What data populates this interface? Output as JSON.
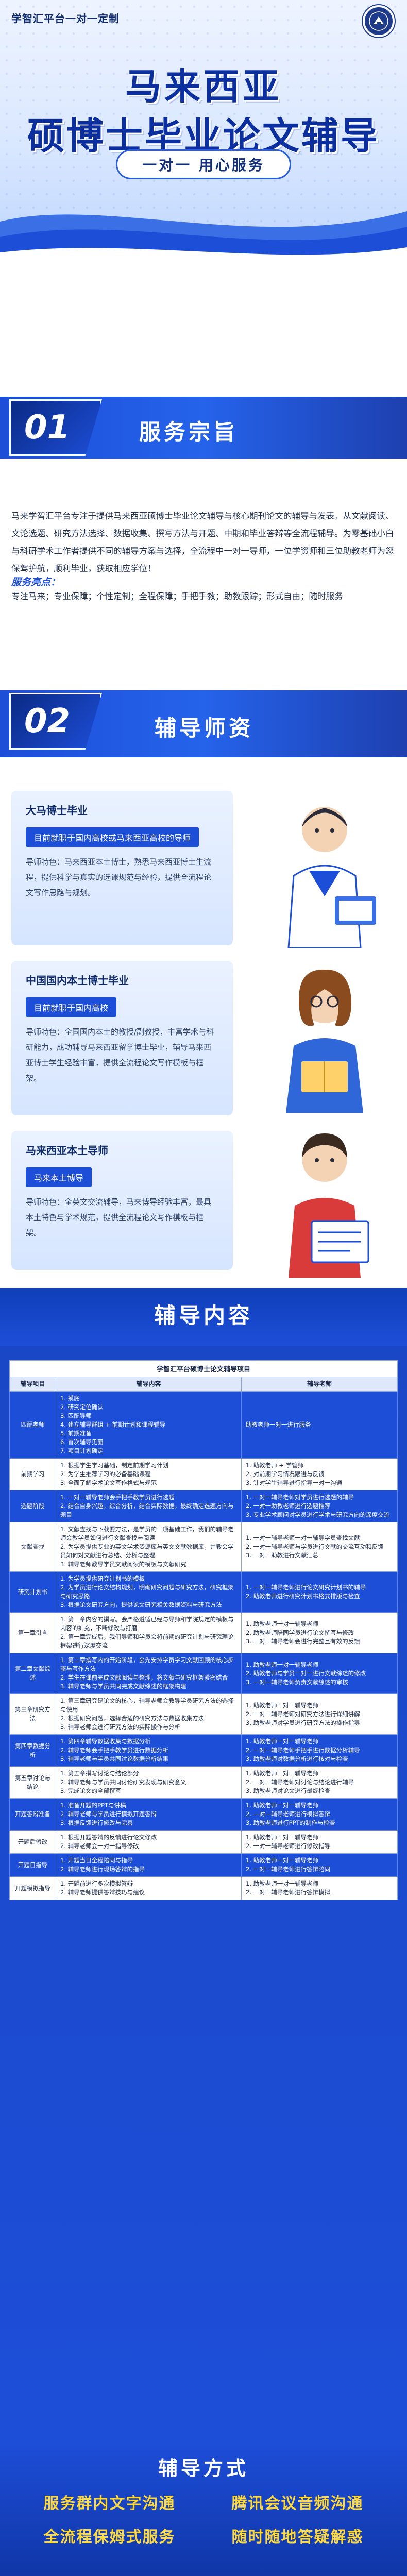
{
  "header": {
    "brand": "学智汇平台一对一定制",
    "title_line1": "马来西亚",
    "title_line2": "硕博士毕业论文辅导",
    "pill": "一对一  用心服务"
  },
  "section1": {
    "number": "01",
    "title": "服务宗旨",
    "body": "马来学智汇平台专注于提供马来西亚硕博士毕业论文辅导与核心期刊论文的辅导与发表。从文献阅读、文论选题、研究方法选择、数据收集、撰写方法与开题、中期和毕业答辩等全流程辅导。为零基础小白与科研学术工作者提供不同的辅导方案与选择，全流程中一对一导师，一位学资师和三位助教老师为您保驾护航，顺利毕业，获取相应学位！",
    "adv_label": "服务亮点：",
    "adv_list": "专注马来；专业保障；个性定制；全程保障；手把手教；助教跟踪；形式自由；随时服务"
  },
  "section2": {
    "number": "02",
    "title": "辅导师资",
    "mentors": [
      {
        "title": "大马博士毕业",
        "sub": "目前就职于国内高校或马来西亚高校的导师",
        "desc": "导师特色：马来西亚本土博士，熟悉马来西亚博士生流程，提供科学与真实的选课规范与经验，提供全流程论文写作思路与规划。"
      },
      {
        "title": "中国国内本土博士毕业",
        "sub": "目前就职于国内高校",
        "desc": "导师特色：全国国内本土的教授/副教授，丰富学术与科研能力，成功辅导马来西亚留学博士毕业，辅导马来西亚博士学生经验丰富，提供全流程论文写作模板与框架。"
      },
      {
        "title": "马来西亚本土导师",
        "sub": "马来本土博导",
        "desc": "导师特色：全英文交流辅导，马来博导经验丰富，最具本土特色与学术规范，提供全流程论文写作模板与框架。"
      }
    ]
  },
  "section3": {
    "title": "辅导内容",
    "table_caption": "学智汇平台硕博士论文辅导项目",
    "headers": [
      "辅导项目",
      "辅导内容",
      "辅导老师"
    ],
    "rows": [
      {
        "stage": "匹配老师",
        "content": [
          "1. 摸底",
          "2. 研究定位确认",
          "3. 匹配导师",
          "4. 建立辅导群组 + 前期计划和课程辅导",
          "5. 前期准备",
          "6. 首次辅导见面",
          "7. 项目计划确定"
        ],
        "teacher": "助教老师一对一进行服务",
        "hl": true
      },
      {
        "stage": "前期学习",
        "content": [
          "1. 根据学生学习基础，制定前期学习计划",
          "2. 为学生推荐学习的必备基础课程",
          "3. 全面了解学术论文写作格式与规范"
        ],
        "teacher": "1. 助教老师 + 学管师\n2. 对前期学习情况跟进与反馈\n3. 针对学生辅导进行指导一对一沟通",
        "hl": false
      },
      {
        "stage": "选题阶段",
        "content": [
          "1. 一对一辅导老师会手把手教学员进行选题",
          "2. 结合自身兴趣，综合分析，结合实际数据，最终确定选题方向与题目"
        ],
        "teacher": "1. 一对一辅导老师对学员进行选题的辅导\n2. 一对一助教老师进行选题推荐\n3. 专业学术顾问对学员进行学术与研究方向的深度交流",
        "hl": true
      },
      {
        "stage": "文献查找",
        "content": [
          "1. 文献查找与下载要方法，是学员的一项基础工作，我们的辅导老师会教学员如何进行文献查找与阅读",
          "2. 为学员提供专业的英文学术资源库与英文文献数据库，并教会学员如何对文献进行总结、分析与整理",
          "3. 辅导老师教导学员文献阅读的模板与文献研究"
        ],
        "teacher": "1. 一对一辅导老师一对一辅导学员查找文献\n2. 一对一辅导老师与学员进行文献的交流互动和反馈\n3. 一对一助教进行文献汇总",
        "hl": false
      },
      {
        "stage": "研究计划书",
        "content": [
          "1. 为学员提供研究计划书的模板",
          "2. 为学员进行论文结构规划，明确研究问题与研究方法，研究框架与研究思路",
          "3. 根据论文研究方向，提供论文研究相关数据资料与研究方法"
        ],
        "teacher": "1. 一对一辅导老师进行论文研究计划书的辅导\n2. 助教老师进行研究计划书格式排版与检查",
        "hl": true
      },
      {
        "stage": "第一章引言",
        "content": [
          "1. 第一章内容的撰写。会严格遵循已经与导师和学院规定的模板与内容的扩充，不断修改与打磨",
          "2. 第一章完成后，我们导师和学员会将前期的研究计划与研究理论框架进行深度交流"
        ],
        "teacher": "1. 助教老师一对一辅导老师\n2. 助教老师陪同学员进行论文撰写与修改\n3. 一对一辅导老师会进行完整且有效的反馈",
        "hl": false
      },
      {
        "stage": "第二章文献综述",
        "content": [
          "1. 第二章撰写内的开始阶段，会先安排学员学习文献回顾的核心步骤与写作方法",
          "2. 学生在课前完成文献阅读与整理，将文献与研究框架紧密结合",
          "3. 辅导老师与学员共同完成文献综述的框架构建"
        ],
        "teacher": "1. 助教老师一对一辅导老师\n2. 助教老师与学员一对一进行文献综述的修改\n3. 一对一辅导老师负责文献综述的审核",
        "hl": true
      },
      {
        "stage": "第三章研究方法",
        "content": [
          "1. 第三章研究是论文的核心，辅导老师会教导学员研究方法的选择与使用",
          "2. 根据研究问题，选择合适的研究方法与数据收集方法",
          "3. 辅导老师会进行研究方法的实际操作与分析"
        ],
        "teacher": "1. 助教老师一对一辅导老师\n2. 一对一辅导老师对研究方法进行详细讲解\n3. 助教老师对学员进行研究方法的操作指导",
        "hl": false
      },
      {
        "stage": "第四章数据分析",
        "content": [
          "1. 第四章辅导数据收集与数据分析",
          "2. 辅导老师会手把手教学员进行数据分析",
          "3. 辅导老师与学员共同讨论数据分析结果"
        ],
        "teacher": "1. 助教老师一对一辅导老师\n2. 一对一辅导老师手把手进行数据分析辅导\n3. 助教老师对数据分析进行核对与检查",
        "hl": true
      },
      {
        "stage": "第五章讨论与结论",
        "content": [
          "1. 第五章撰写讨论与结论部分",
          "2. 辅导老师与学员共同讨论研究发现与研究意义",
          "3. 完成论文的全部撰写"
        ],
        "teacher": "1. 助教老师一对一辅导老师\n2. 一对一辅导老师对讨论与结论进行辅导\n3. 助教老师对论文进行最终检查",
        "hl": false
      },
      {
        "stage": "开题答辩准备",
        "content": [
          "1. 准备开题的PPT与讲稿",
          "2. 辅导老师与学员进行模拟开题答辩",
          "3. 根据反馈进行修改与完善"
        ],
        "teacher": "1. 助教老师一对一辅导老师\n2. 一对一辅导老师进行模拟答辩\n3. 助教老师进行PPT的制作与检查",
        "hl": true
      },
      {
        "stage": "开题后修改",
        "content": [
          "1. 根据开题答辩的反馈进行论文修改",
          "2. 辅导老师会一对一指导修改"
        ],
        "teacher": "1. 助教老师一对一辅导老师\n2. 一对一辅导老师进行修改指导",
        "hl": false
      },
      {
        "stage": "开题日指导",
        "content": [
          "1. 开题当日全程陪同与指导",
          "2. 辅导老师进行现场答辩的指导"
        ],
        "teacher": "1. 助教老师一对一辅导老师\n2. 一对一辅导老师进行答辩陪同",
        "hl": true
      },
      {
        "stage": "开题模拟指导",
        "content": [
          "1. 开题前进行多次模拟答辩",
          "2. 辅导老师提供答辩技巧与建议"
        ],
        "teacher": "1. 助教老师一对一辅导老师\n2. 一对一辅导老师进行答辩模拟",
        "hl": false
      }
    ]
  },
  "footer": {
    "title": "辅导方式",
    "items": [
      [
        "服务群内文字沟通",
        "腾讯会议音频沟通"
      ],
      [
        "全流程保姆式服务",
        "随时随地答疑解惑"
      ]
    ]
  },
  "colors": {
    "primary": "#1d4ed8",
    "dark": "#0b2f9e",
    "accent_yellow": "#ffd83a"
  }
}
